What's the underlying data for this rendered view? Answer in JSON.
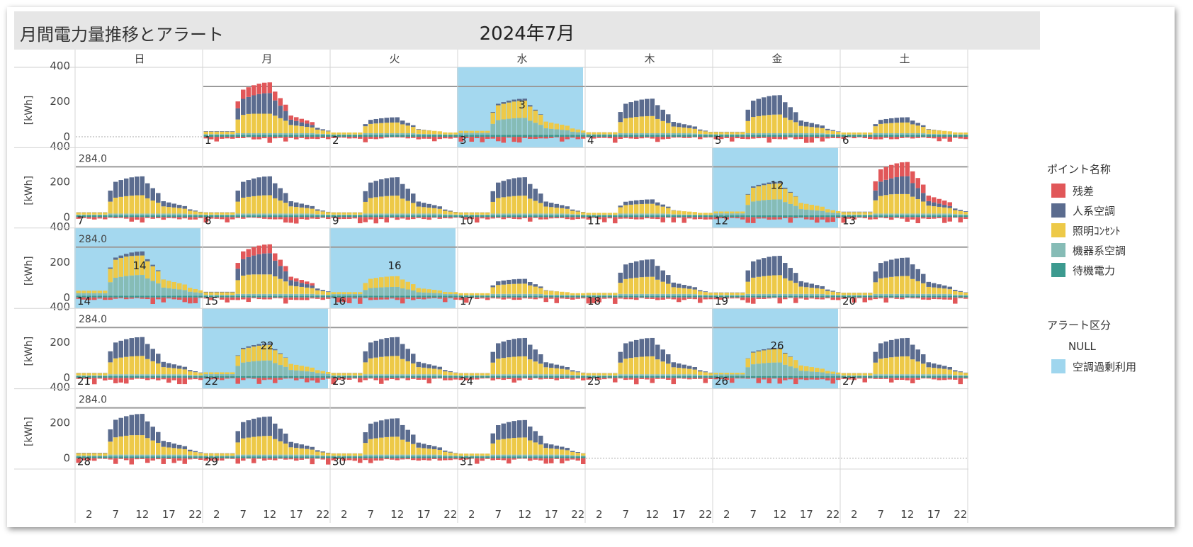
{
  "header": {
    "title": "月間電力量推移とアラート",
    "month": "2024年7月"
  },
  "calendar": {
    "weekdays": [
      "日",
      "月",
      "火",
      "水",
      "木",
      "金",
      "土"
    ],
    "y_axis_label": "[kWh]",
    "y_ticks": [
      0,
      200,
      400
    ],
    "x_ticks": [
      2,
      7,
      12,
      17,
      22
    ],
    "first_weekday_index": 1,
    "days_in_month": 31
  },
  "legend": {
    "components_title": "ポイント名称",
    "components": [
      {
        "label": "残差",
        "color": "#e15759"
      },
      {
        "label": "人系空調",
        "color": "#5b6c8f"
      },
      {
        "label": "照明ｺﾝｾﾝﾄ",
        "color": "#edc948"
      },
      {
        "label": "機器系空調",
        "color": "#86bcb6"
      },
      {
        "label": "待機電力",
        "color": "#3c9a8f"
      }
    ],
    "alert_title": "アラート区分",
    "alerts": [
      {
        "label": "NULL",
        "color": ""
      },
      {
        "label": "空調過剰利用",
        "color": "#9fd6ee"
      }
    ]
  },
  "chart_data": {
    "type": "bar",
    "subtype": "calendar small-multiples, stacked hourly bars",
    "x": "hour of day",
    "xlabel": "",
    "ylabel": "[kWh]",
    "ylim": [
      -50,
      420
    ],
    "threshold": 284.0,
    "threshold_label_weeks": [
      2,
      3,
      4,
      5
    ],
    "series": [
      "残差",
      "人系空調",
      "照明ｺﾝｾﾝﾄ",
      "機器系空調",
      "待機電力"
    ],
    "alert_days": [
      3,
      12,
      14,
      16,
      22,
      26
    ],
    "days": [
      {
        "day": 1,
        "weekday": "月",
        "peak_total": 265,
        "residual_peak": 60
      },
      {
        "day": 2,
        "weekday": "火",
        "peak_total": 110
      },
      {
        "day": 3,
        "weekday": "水",
        "peak_total": 215,
        "alert": "空調過剰利用"
      },
      {
        "day": 4,
        "weekday": "木",
        "peak_total": 215
      },
      {
        "day": 5,
        "weekday": "金",
        "peak_total": 235
      },
      {
        "day": 6,
        "weekday": "土",
        "peak_total": 110
      },
      {
        "day": 7,
        "weekday": "日",
        "peak_total": 230
      },
      {
        "day": 8,
        "weekday": "月",
        "peak_total": 230
      },
      {
        "day": 9,
        "weekday": "火",
        "peak_total": 225
      },
      {
        "day": 10,
        "weekday": "水",
        "peak_total": 225
      },
      {
        "day": 11,
        "weekday": "木",
        "peak_total": 100
      },
      {
        "day": 12,
        "weekday": "金",
        "peak_total": 200,
        "alert": "空調過剰利用"
      },
      {
        "day": 13,
        "weekday": "土",
        "peak_total": 255,
        "residual_peak": 80
      },
      {
        "day": 14,
        "weekday": "日",
        "peak_total": 260,
        "alert": "空調過剰利用"
      },
      {
        "day": 15,
        "weekday": "月",
        "peak_total": 265,
        "residual_peak": 50
      },
      {
        "day": 16,
        "weekday": "火",
        "peak_total": 110,
        "alert": "空調過剰利用"
      },
      {
        "day": 17,
        "weekday": "水",
        "peak_total": 105
      },
      {
        "day": 18,
        "weekday": "木",
        "peak_total": 215
      },
      {
        "day": 19,
        "weekday": "金",
        "peak_total": 235
      },
      {
        "day": 20,
        "weekday": "土",
        "peak_total": 225
      },
      {
        "day": 21,
        "weekday": "日",
        "peak_total": 230
      },
      {
        "day": 22,
        "weekday": "月",
        "peak_total": 195,
        "alert": "空調過剰利用"
      },
      {
        "day": 23,
        "weekday": "火",
        "peak_total": 230
      },
      {
        "day": 24,
        "weekday": "水",
        "peak_total": 225
      },
      {
        "day": 25,
        "weekday": "木",
        "peak_total": 225
      },
      {
        "day": 26,
        "weekday": "金",
        "peak_total": 170,
        "alert": "空調過剰利用"
      },
      {
        "day": 27,
        "weekday": "土",
        "peak_total": 225
      },
      {
        "day": 28,
        "weekday": "日",
        "peak_total": 250
      },
      {
        "day": 29,
        "weekday": "月",
        "peak_total": 235
      },
      {
        "day": 30,
        "weekday": "火",
        "peak_total": 225
      },
      {
        "day": 31,
        "weekday": "水",
        "peak_total": 215
      }
    ]
  }
}
